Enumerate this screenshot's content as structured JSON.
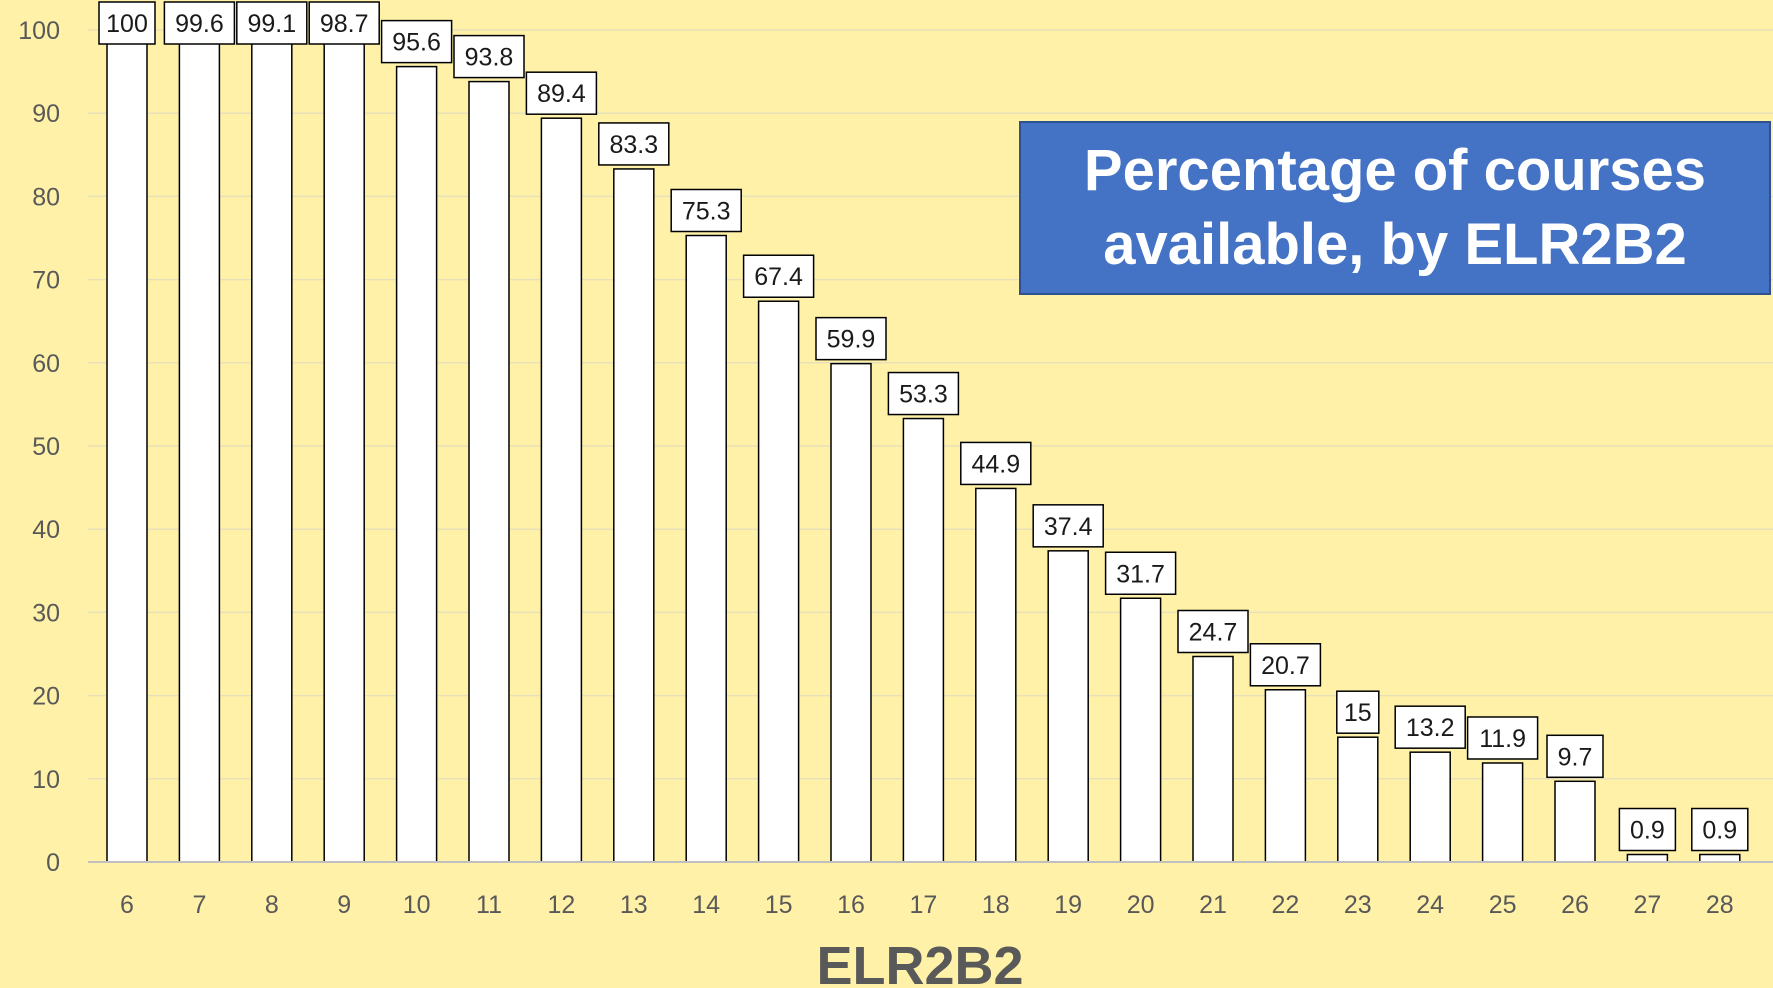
{
  "chart_data": {
    "type": "bar",
    "title": "Percentage of courses available, by ELR2B2",
    "xlabel": "ELR2B2",
    "ylabel": "",
    "ylim": [
      0,
      100
    ],
    "yticks": [
      0,
      10,
      20,
      30,
      40,
      50,
      60,
      70,
      80,
      90,
      100
    ],
    "grid": true,
    "legend": "none",
    "categories": [
      "6",
      "7",
      "8",
      "9",
      "10",
      "11",
      "12",
      "13",
      "14",
      "15",
      "16",
      "17",
      "18",
      "19",
      "20",
      "21",
      "22",
      "23",
      "24",
      "25",
      "26",
      "27",
      "28"
    ],
    "values": [
      100,
      99.6,
      99.1,
      98.7,
      95.6,
      93.8,
      89.4,
      83.3,
      75.3,
      67.4,
      59.9,
      53.3,
      44.9,
      37.4,
      31.7,
      24.7,
      20.7,
      15,
      13.2,
      11.9,
      9.7,
      0.9,
      0.9
    ],
    "colors": {
      "background": "#fff2a8",
      "bar_fill": "#ffffff",
      "bar_stroke": "#000000",
      "gridline": "#e8e0b8",
      "axis": "#bfbfbf",
      "title_box": "#4472c4",
      "title_text": "#ffffff"
    }
  }
}
